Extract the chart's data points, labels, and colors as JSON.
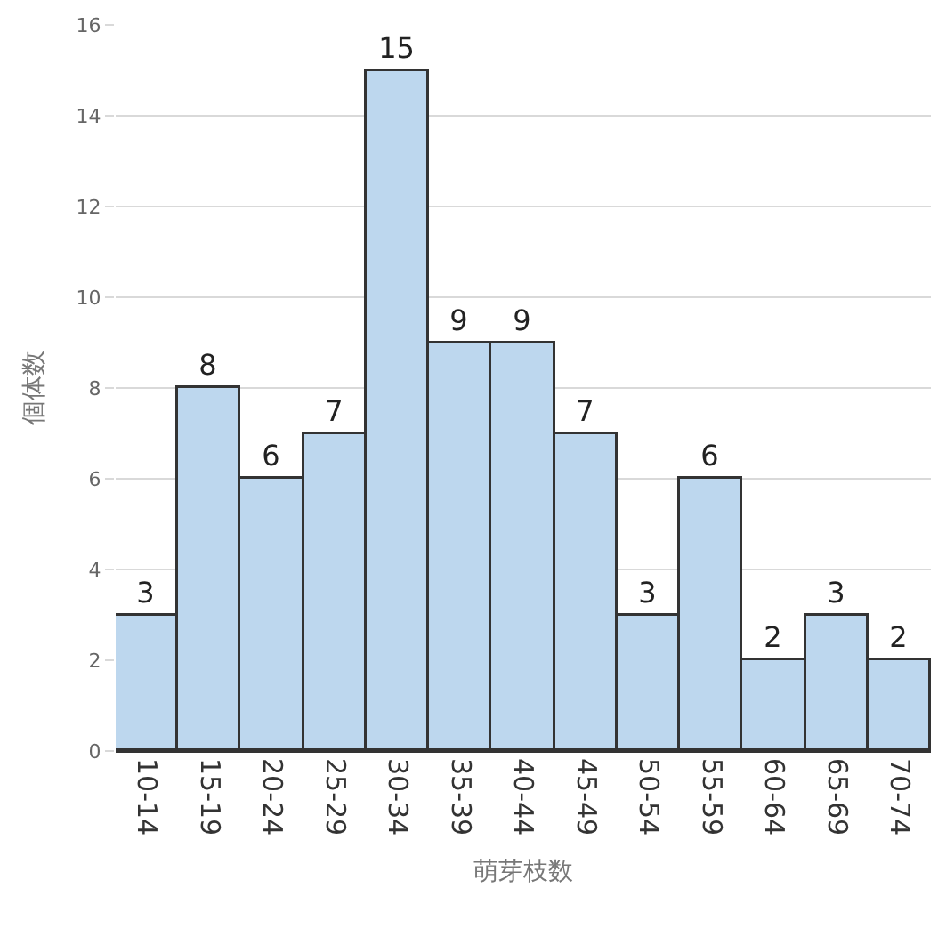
{
  "chart_data": {
    "type": "bar",
    "xlabel": "萌芽枝数",
    "ylabel": "個体数",
    "categories": [
      "10-14",
      "15-19",
      "20-24",
      "25-29",
      "30-34",
      "35-39",
      "40-44",
      "45-49",
      "50-54",
      "55-59",
      "60-64",
      "65-69",
      "70-74"
    ],
    "values": [
      3,
      8,
      6,
      7,
      15,
      9,
      9,
      7,
      3,
      6,
      2,
      3,
      2
    ],
    "color": "#bdd7ee",
    "ylim": [
      0,
      16
    ],
    "yticks": [
      0,
      2,
      4,
      6,
      8,
      10,
      12,
      14,
      16
    ],
    "grid": "y",
    "data_labels": true,
    "legend": false
  }
}
